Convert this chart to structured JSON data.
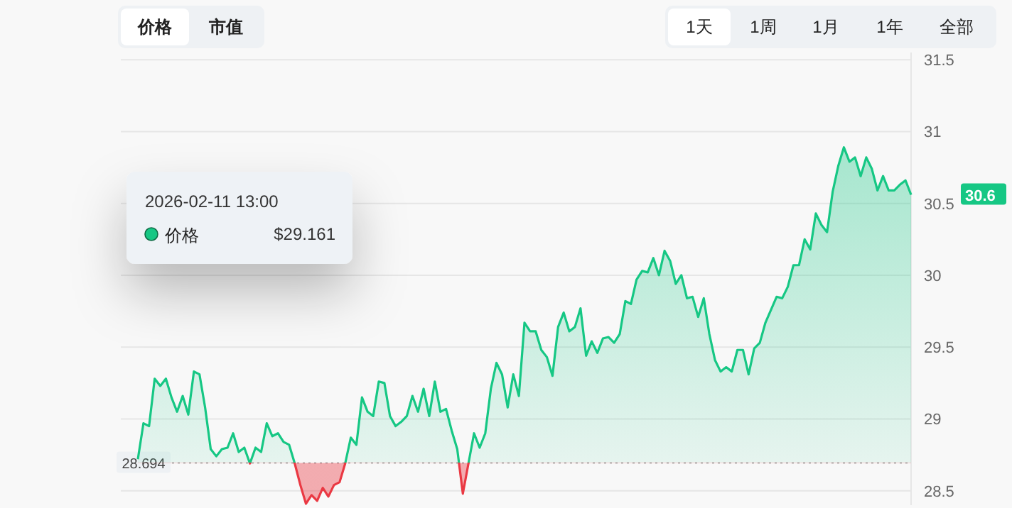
{
  "chart_data": {
    "type": "area",
    "categories": [
      null,
      null,
      null,
      null,
      null,
      null,
      null,
      null,
      null,
      null,
      null,
      null,
      null,
      null,
      null,
      null,
      null,
      null,
      null,
      null,
      null,
      null,
      null,
      null,
      null,
      null,
      null,
      null,
      null,
      null,
      null,
      null,
      null,
      null,
      null,
      null,
      null,
      null,
      null,
      null,
      null,
      null,
      null,
      null,
      null,
      null,
      null,
      null,
      null,
      null,
      null,
      null,
      null,
      null,
      null,
      null,
      null,
      null,
      null,
      null,
      null,
      null,
      null,
      null,
      null,
      null,
      null,
      null,
      null,
      null,
      null,
      null,
      null,
      null,
      null,
      null,
      null,
      null,
      null,
      null,
      null,
      null,
      null,
      null,
      null,
      null,
      null,
      null,
      null,
      null,
      null,
      null,
      null,
      null,
      null,
      null,
      null,
      null,
      null,
      null,
      null,
      null,
      null,
      null,
      null,
      null,
      null,
      null,
      null,
      null,
      null,
      null,
      null,
      null,
      null,
      null,
      null,
      null,
      null,
      null,
      null,
      null,
      null,
      null,
      null,
      null,
      null,
      null,
      null,
      null,
      null,
      null,
      null,
      null,
      null,
      null,
      null,
      null,
      null
    ],
    "series": [
      {
        "color": "#16c784",
        "values": [
          28.72,
          28.97,
          28.95,
          29.28,
          29.23,
          29.28,
          29.15,
          29.05,
          29.16,
          29.03,
          29.33,
          29.31,
          29.08,
          28.79,
          28.74,
          28.79,
          28.8,
          28.9,
          28.77,
          28.8,
          28.69,
          28.8,
          28.77,
          28.97,
          28.88,
          28.9,
          28.84,
          28.82,
          28.69,
          28.54,
          28.41,
          28.47,
          28.43,
          28.52,
          28.46,
          28.54,
          28.56,
          28.69,
          28.87,
          28.82,
          29.15,
          29.05,
          29.02,
          29.26,
          29.25,
          29.02,
          28.95,
          28.98,
          29.02,
          29.16,
          29.05,
          29.21,
          29.02,
          29.26,
          29.05,
          29.07,
          28.92,
          28.79,
          28.48,
          28.69,
          28.9,
          28.8,
          28.9,
          29.21,
          29.39,
          29.31,
          29.08,
          29.31,
          29.16,
          29.67,
          29.61,
          29.61,
          29.48,
          29.43,
          29.3,
          29.64,
          29.74,
          29.61,
          29.64,
          29.77,
          29.44,
          29.54,
          29.46,
          29.56,
          29.57,
          29.53,
          29.59,
          29.82,
          29.8,
          29.97,
          30.03,
          30.02,
          30.12,
          30.0,
          30.17,
          30.1,
          29.94,
          30.0,
          29.84,
          29.85,
          29.71,
          29.84,
          29.59,
          29.41,
          29.33,
          29.36,
          29.33,
          29.48,
          29.48,
          29.31,
          29.49,
          29.53,
          29.67,
          29.76,
          29.85,
          29.84,
          29.92,
          30.07,
          30.07,
          30.25,
          30.18,
          30.43,
          30.35,
          30.3,
          30.58,
          30.76,
          30.89,
          30.79,
          30.82,
          30.69,
          30.82,
          30.74,
          30.59,
          30.69,
          30.59,
          30.59,
          30.63,
          30.66,
          30.56
        ]
      }
    ],
    "ylim": [
      28.4,
      31.55
    ],
    "yticks": [
      28.5,
      29,
      29.5,
      30,
      30.5,
      31,
      31.5
    ],
    "grid": "y",
    "ref_lines": [
      {
        "axis": "y",
        "value": 28.694,
        "label": "28.694",
        "color": "#b0b0b0",
        "line_style": "dotted"
      }
    ],
    "annotations": [
      "价格",
      "市值",
      "1天",
      "1周",
      "1月",
      "1年",
      "全部",
      "2026-02-11 13:00",
      "价格",
      "$29.161",
      "30.6"
    ]
  }
}
